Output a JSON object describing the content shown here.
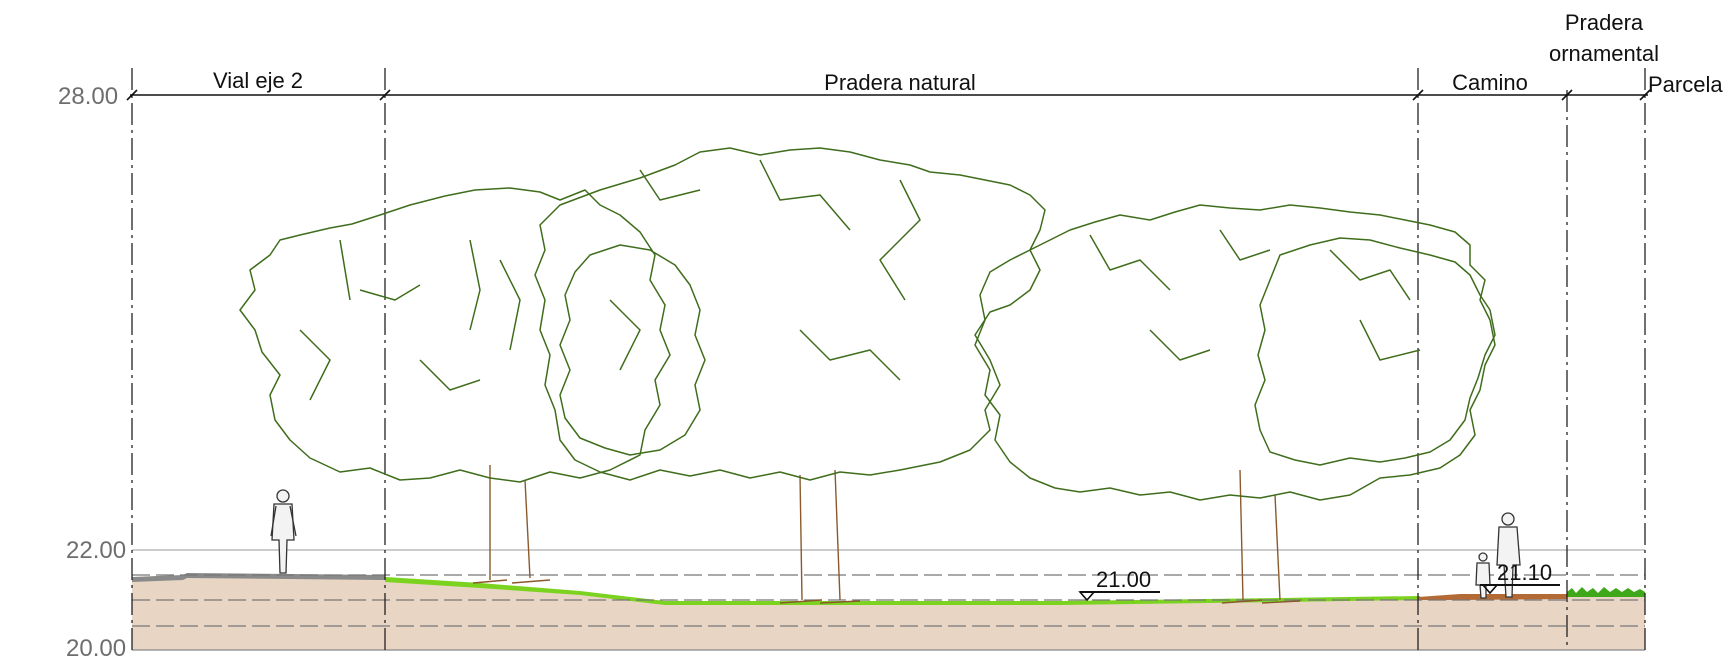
{
  "zones": [
    {
      "id": "vial",
      "label": "Vial eje 2"
    },
    {
      "id": "pradera-natural",
      "label": "Pradera natural"
    },
    {
      "id": "camino",
      "label": "Camino"
    },
    {
      "id": "pradera-ornamental",
      "label_line1": "Pradera",
      "label_line2": "ornamental"
    },
    {
      "id": "parcela",
      "label": "Parcela"
    }
  ],
  "elevations": [
    "28.00",
    "22.00",
    "20.00"
  ],
  "levels": [
    {
      "id": "pradera-level",
      "value": "21.00"
    },
    {
      "id": "camino-level",
      "value": "21.10"
    }
  ],
  "colors": {
    "canopy": "#3f6d1c",
    "grass": "#7bd320",
    "ground": "#e8d5c4",
    "path": "#b36a35",
    "trunk": "#8a5a2c"
  }
}
